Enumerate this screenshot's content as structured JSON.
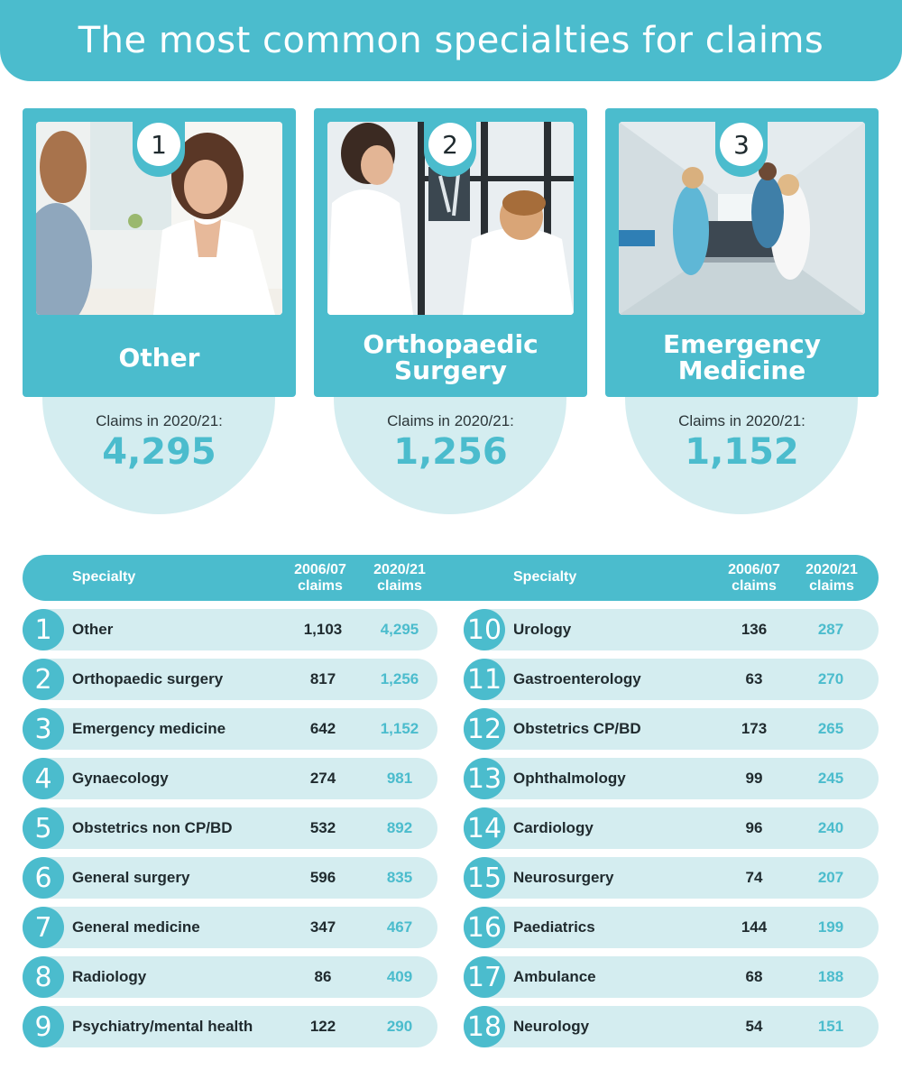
{
  "title": "The most common specialties for claims",
  "colors": {
    "accent": "#4bbccd",
    "light": "#d4edf0",
    "text": "#1f2a2e"
  },
  "top_cards": [
    {
      "rank": "1",
      "name": "Other",
      "claims_label": "Claims in 2020/21:",
      "claims_value": "4,295",
      "photo": "doctor-consultation-photo"
    },
    {
      "rank": "2",
      "name": "Orthopaedic Surgery",
      "claims_label": "Claims in 2020/21:",
      "claims_value": "1,256",
      "photo": "xray-review-photo"
    },
    {
      "rank": "3",
      "name": "Emergency Medicine",
      "claims_label": "Claims in 2020/21:",
      "claims_value": "1,152",
      "photo": "hospital-corridor-photo"
    }
  ],
  "table": {
    "header": {
      "specialty": "Specialty",
      "col_2006_line1": "2006/07",
      "col_2006_line2": "claims",
      "col_2020_line1": "2020/21",
      "col_2020_line2": "claims"
    },
    "rows": [
      {
        "rank": "1",
        "specialty": "Other",
        "claims_2006": "1,103",
        "claims_2020": "4,295"
      },
      {
        "rank": "2",
        "specialty": "Orthopaedic surgery",
        "claims_2006": "817",
        "claims_2020": "1,256"
      },
      {
        "rank": "3",
        "specialty": "Emergency medicine",
        "claims_2006": "642",
        "claims_2020": "1,152"
      },
      {
        "rank": "4",
        "specialty": "Gynaecology",
        "claims_2006": "274",
        "claims_2020": "981"
      },
      {
        "rank": "5",
        "specialty": "Obstetrics non CP/BD",
        "claims_2006": "532",
        "claims_2020": "892"
      },
      {
        "rank": "6",
        "specialty": "General surgery",
        "claims_2006": "596",
        "claims_2020": "835"
      },
      {
        "rank": "7",
        "specialty": "General medicine",
        "claims_2006": "347",
        "claims_2020": "467"
      },
      {
        "rank": "8",
        "specialty": "Radiology",
        "claims_2006": "86",
        "claims_2020": "409"
      },
      {
        "rank": "9",
        "specialty": "Psychiatry/mental health",
        "claims_2006": "122",
        "claims_2020": "290"
      },
      {
        "rank": "10",
        "specialty": "Urology",
        "claims_2006": "136",
        "claims_2020": "287"
      },
      {
        "rank": "11",
        "specialty": "Gastroenterology",
        "claims_2006": "63",
        "claims_2020": "270"
      },
      {
        "rank": "12",
        "specialty": "Obstetrics CP/BD",
        "claims_2006": "173",
        "claims_2020": "265"
      },
      {
        "rank": "13",
        "specialty": "Ophthalmology",
        "claims_2006": "99",
        "claims_2020": "245"
      },
      {
        "rank": "14",
        "specialty": "Cardiology",
        "claims_2006": "96",
        "claims_2020": "240"
      },
      {
        "rank": "15",
        "specialty": "Neurosurgery",
        "claims_2006": "74",
        "claims_2020": "207"
      },
      {
        "rank": "16",
        "specialty": "Paediatrics",
        "claims_2006": "144",
        "claims_2020": "199"
      },
      {
        "rank": "17",
        "specialty": "Ambulance",
        "claims_2006": "68",
        "claims_2020": "188"
      },
      {
        "rank": "18",
        "specialty": "Neurology",
        "claims_2006": "54",
        "claims_2020": "151"
      }
    ]
  }
}
